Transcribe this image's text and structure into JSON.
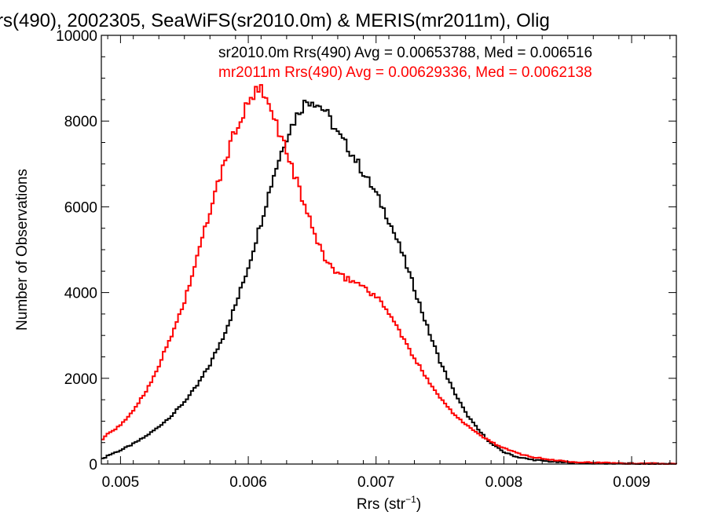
{
  "chart_data": {
    "type": "line",
    "title": "rs(490), 2002305, SeaWiFS(sr2010.0m) & MERIS(mr2011m), Olig",
    "xlabel_main": "Rrs (str",
    "xlabel_sup": "−1",
    "xlabel_close": ")",
    "ylabel": "Number of Observations",
    "xlim": [
      0.00485,
      0.00935
    ],
    "ylim": [
      0,
      10000
    ],
    "x_ticks": [
      {
        "value": 0.005,
        "label": "0.005"
      },
      {
        "value": 0.006,
        "label": "0.006"
      },
      {
        "value": 0.007,
        "label": "0.007"
      },
      {
        "value": 0.008,
        "label": "0.008"
      },
      {
        "value": 0.009,
        "label": "0.009"
      }
    ],
    "y_ticks": [
      {
        "value": 0,
        "label": "0"
      },
      {
        "value": 2000,
        "label": "2000"
      },
      {
        "value": 4000,
        "label": "4000"
      },
      {
        "value": 6000,
        "label": "6000"
      },
      {
        "value": 8000,
        "label": "8000"
      },
      {
        "value": 10000,
        "label": "10000"
      }
    ],
    "grid": false,
    "series": [
      {
        "name": "sr2010.0m",
        "color": "#000000",
        "annotation": "sr2010.0m Rrs(490) Avg = 0.00653788, Med = 0.006516",
        "x": [
          0.00485,
          0.0049,
          0.005,
          0.0051,
          0.0052,
          0.0053,
          0.0054,
          0.0055,
          0.0056,
          0.0057,
          0.0058,
          0.0059,
          0.006,
          0.0061,
          0.0062,
          0.0063,
          0.0064,
          0.00645,
          0.0065,
          0.0066,
          0.0067,
          0.0068,
          0.0069,
          0.007,
          0.0071,
          0.0072,
          0.0073,
          0.0074,
          0.0075,
          0.0076,
          0.0077,
          0.0078,
          0.0079,
          0.008,
          0.0081,
          0.0082,
          0.0083,
          0.0084,
          0.0085,
          0.0086,
          0.0088,
          0.009,
          0.00935
        ],
        "y": [
          100,
          200,
          320,
          470,
          650,
          870,
          1130,
          1450,
          1830,
          2320,
          2950,
          3700,
          4600,
          5650,
          6750,
          7650,
          8250,
          8450,
          8500,
          8250,
          7700,
          7300,
          6800,
          6300,
          5700,
          4950,
          4100,
          3200,
          2400,
          1750,
          1200,
          800,
          480,
          280,
          170,
          110,
          75,
          50,
          35,
          25,
          15,
          10,
          5
        ]
      },
      {
        "name": "mr2011m",
        "color": "#ff0000",
        "annotation": "mr2011m Rrs(490) Avg = 0.00629336, Med = 0.0062138",
        "x": [
          0.00485,
          0.0049,
          0.005,
          0.0051,
          0.0052,
          0.0053,
          0.0054,
          0.0055,
          0.0056,
          0.0057,
          0.0058,
          0.0059,
          0.006,
          0.00605,
          0.0061,
          0.0062,
          0.0063,
          0.0064,
          0.0065,
          0.0066,
          0.0067,
          0.0068,
          0.0069,
          0.007,
          0.0071,
          0.0072,
          0.0073,
          0.0074,
          0.0075,
          0.0076,
          0.0077,
          0.0078,
          0.0079,
          0.008,
          0.0081,
          0.0082,
          0.0083,
          0.0084,
          0.0085,
          0.0086,
          0.0088,
          0.009,
          0.00935
        ],
        "y": [
          550,
          700,
          900,
          1250,
          1700,
          2300,
          3000,
          3800,
          4800,
          5900,
          6900,
          7800,
          8400,
          8650,
          8700,
          8100,
          7300,
          6400,
          5500,
          4800,
          4400,
          4300,
          4150,
          3900,
          3550,
          3000,
          2450,
          2000,
          1550,
          1200,
          930,
          700,
          520,
          370,
          260,
          180,
          125,
          90,
          65,
          45,
          25,
          15,
          8
        ]
      }
    ]
  }
}
